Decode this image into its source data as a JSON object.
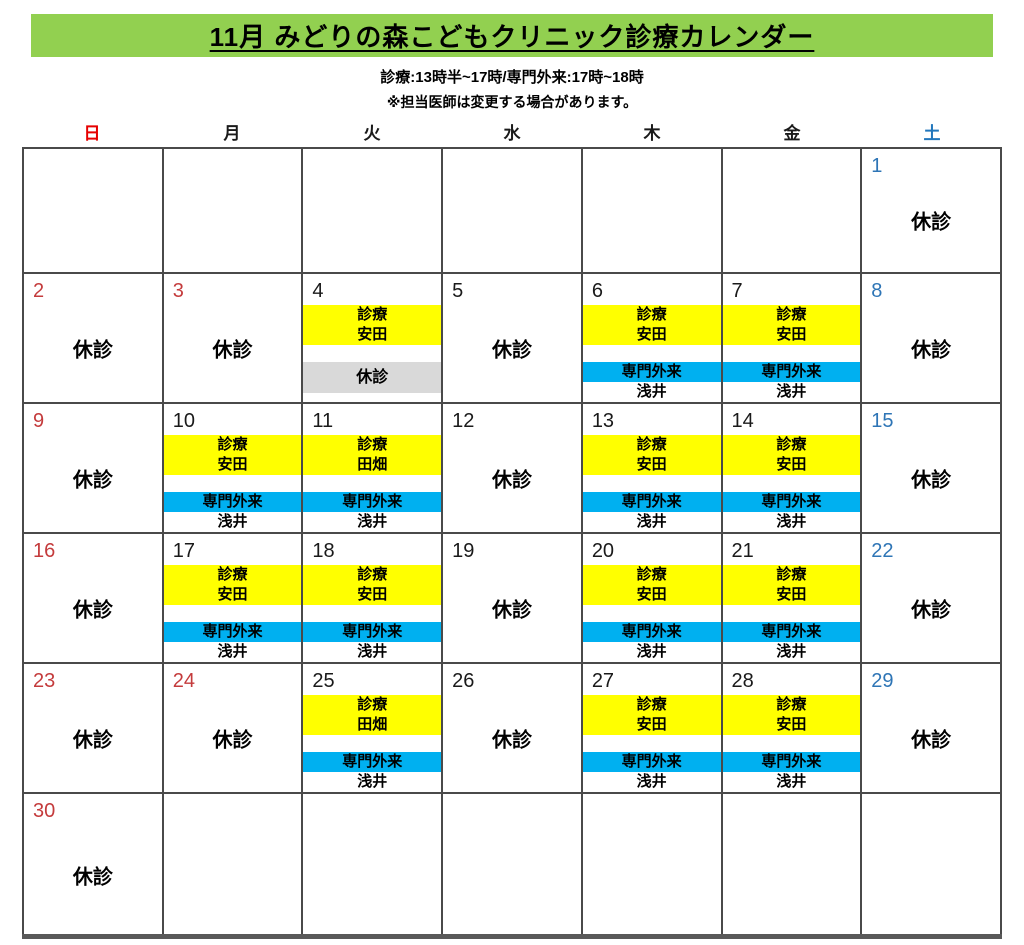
{
  "header": {
    "title": "11月 みどりの森こどもクリニック診療カレンダー",
    "subtitle": "診療:13時半~17時/専門外来:17時~18時",
    "note": "※担当医師は変更する場合があります。"
  },
  "weekdays": [
    {
      "label": "日",
      "color": "#E60000"
    },
    {
      "label": "月",
      "color": "#1a1a1a"
    },
    {
      "label": "火",
      "color": "#1a1a1a"
    },
    {
      "label": "水",
      "color": "#1a1a1a"
    },
    {
      "label": "木",
      "color": "#1a1a1a"
    },
    {
      "label": "金",
      "color": "#1a1a1a"
    },
    {
      "label": "土",
      "color": "#2277BC"
    }
  ],
  "labels": {
    "closed": "休診",
    "clinic": "診療",
    "special_outpatient": "専門外来"
  },
  "colors": {
    "header_green": "#92D050",
    "clinic_yellow": "#FFFF00",
    "special_blue": "#00B0F0",
    "closed_gray": "#D9D9D9",
    "sunday_red": "#C43B3C",
    "saturday_blue": "#2E75B6",
    "grid_line": "#4a4a4a"
  },
  "weeks": [
    [
      {},
      {},
      {},
      {},
      {},
      {},
      {
        "day": "1",
        "num_color": "blue",
        "closed": true
      }
    ],
    [
      {
        "day": "2",
        "num_color": "red",
        "closed": true
      },
      {
        "day": "3",
        "num_color": "red",
        "closed": true
      },
      {
        "day": "4",
        "num_color": "black",
        "clinic_doctor": "安田",
        "closed_band": true
      },
      {
        "day": "5",
        "num_color": "black",
        "closed": true
      },
      {
        "day": "6",
        "num_color": "black",
        "clinic_doctor": "安田",
        "special_doctor": "浅井"
      },
      {
        "day": "7",
        "num_color": "black",
        "clinic_doctor": "安田",
        "special_doctor": "浅井"
      },
      {
        "day": "8",
        "num_color": "blue",
        "closed": true
      }
    ],
    [
      {
        "day": "9",
        "num_color": "red",
        "closed": true
      },
      {
        "day": "10",
        "num_color": "black",
        "clinic_doctor": "安田",
        "special_doctor": "浅井"
      },
      {
        "day": "11",
        "num_color": "black",
        "clinic_doctor": "田畑",
        "special_doctor": "浅井"
      },
      {
        "day": "12",
        "num_color": "black",
        "closed": true
      },
      {
        "day": "13",
        "num_color": "black",
        "clinic_doctor": "安田",
        "special_doctor": "浅井"
      },
      {
        "day": "14",
        "num_color": "black",
        "clinic_doctor": "安田",
        "special_doctor": "浅井"
      },
      {
        "day": "15",
        "num_color": "blue",
        "closed": true
      }
    ],
    [
      {
        "day": "16",
        "num_color": "red",
        "closed": true
      },
      {
        "day": "17",
        "num_color": "black",
        "clinic_doctor": "安田",
        "special_doctor": "浅井"
      },
      {
        "day": "18",
        "num_color": "black",
        "clinic_doctor": "安田",
        "special_doctor": "浅井"
      },
      {
        "day": "19",
        "num_color": "black",
        "closed": true
      },
      {
        "day": "20",
        "num_color": "black",
        "clinic_doctor": "安田",
        "special_doctor": "浅井"
      },
      {
        "day": "21",
        "num_color": "black",
        "clinic_doctor": "安田",
        "special_doctor": "浅井"
      },
      {
        "day": "22",
        "num_color": "blue",
        "closed": true
      }
    ],
    [
      {
        "day": "23",
        "num_color": "red",
        "closed": true
      },
      {
        "day": "24",
        "num_color": "red",
        "closed": true
      },
      {
        "day": "25",
        "num_color": "black",
        "clinic_doctor": "田畑",
        "special_doctor": "浅井"
      },
      {
        "day": "26",
        "num_color": "black",
        "closed": true
      },
      {
        "day": "27",
        "num_color": "black",
        "clinic_doctor": "安田",
        "special_doctor": "浅井"
      },
      {
        "day": "28",
        "num_color": "black",
        "clinic_doctor": "安田",
        "special_doctor": "浅井"
      },
      {
        "day": "29",
        "num_color": "blue",
        "closed": true
      }
    ],
    [
      {
        "day": "30",
        "num_color": "red",
        "closed": true
      },
      {},
      {},
      {},
      {},
      {},
      {}
    ]
  ]
}
